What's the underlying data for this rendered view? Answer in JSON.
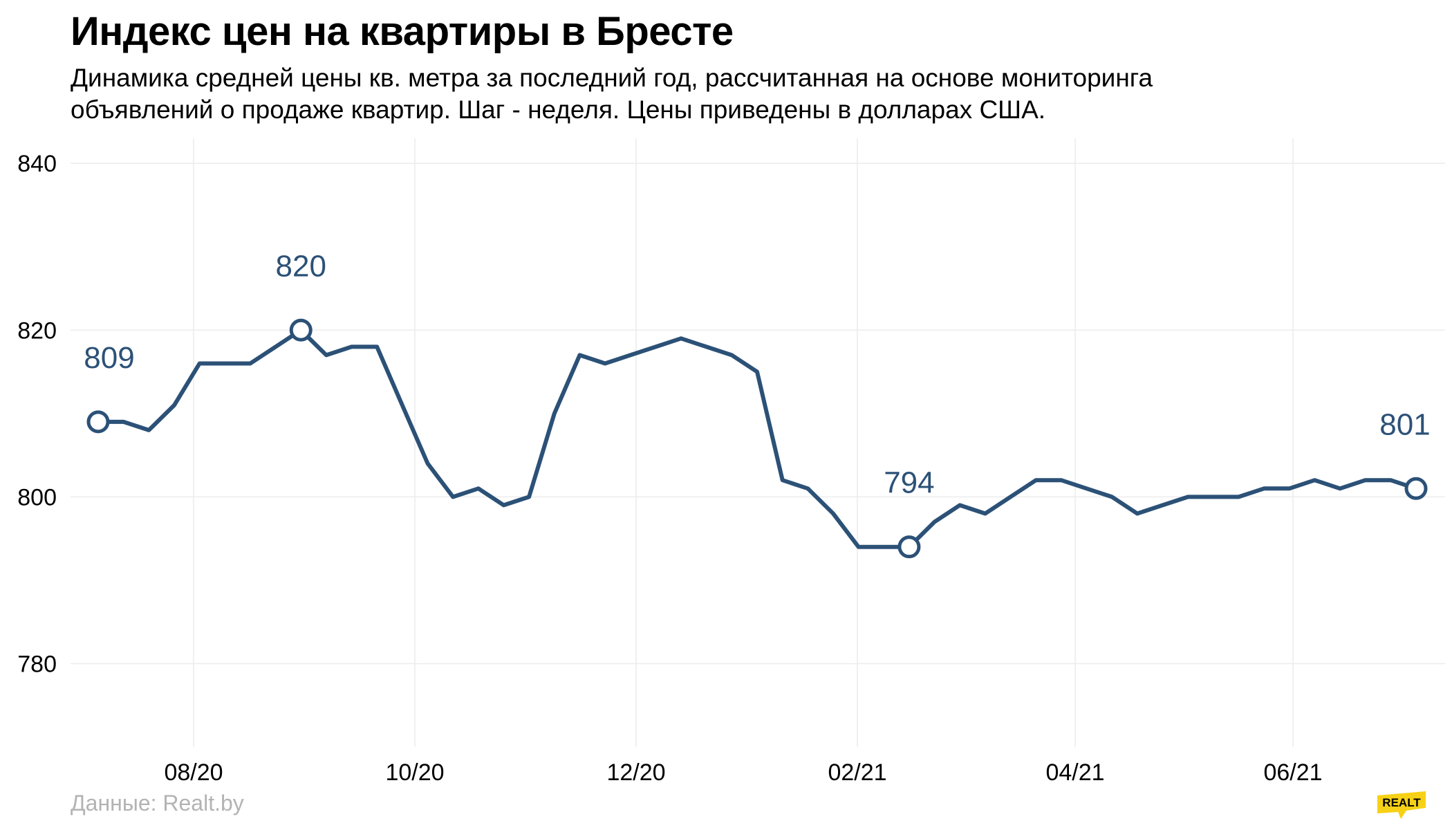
{
  "title": "Индекс цен на квартиры в Бресте",
  "subtitle": "Динамика средней цены кв. метра за последний год, рассчитанная на основе мониторинга объявлений о продаже квартир. Шаг - неделя. Цены приведены в долларах США.",
  "source": "Данные: Realt.by",
  "brand_logo": "REALT",
  "colors": {
    "line": "#2c5177",
    "grid": "#ececec",
    "axis_text": "#000000",
    "annotation": "#2c5177",
    "source_text": "#b3b3b3",
    "logo": "#f7d117"
  },
  "chart_data": {
    "type": "line",
    "title": "Индекс цен на квартиры в Бресте",
    "xlabel": "",
    "ylabel": "",
    "ylim": [
      770,
      843
    ],
    "y_ticks": [
      780,
      800,
      820,
      840
    ],
    "x_ticks": [
      "08/20",
      "10/20",
      "12/20",
      "02/21",
      "04/21",
      "06/21"
    ],
    "grid": true,
    "legend": "none",
    "series": [
      {
        "values": [
          809,
          809,
          808,
          811,
          816,
          816,
          816,
          818,
          820,
          817,
          818,
          818,
          811,
          804,
          800,
          801,
          799,
          800,
          810,
          817,
          816,
          817,
          818,
          819,
          818,
          817,
          815,
          802,
          801,
          798,
          794,
          794,
          794,
          797,
          799,
          798,
          800,
          802,
          802,
          801,
          800,
          798,
          799,
          800,
          800,
          800,
          801,
          801,
          802,
          801,
          802,
          802,
          801
        ]
      }
    ],
    "annotations": [
      {
        "index": 0,
        "value": 809,
        "label": "809"
      },
      {
        "index": 8,
        "value": 820,
        "label": "820"
      },
      {
        "index": 32,
        "value": 794,
        "label": "794"
      },
      {
        "index": 52,
        "value": 801,
        "label": "801"
      }
    ]
  }
}
